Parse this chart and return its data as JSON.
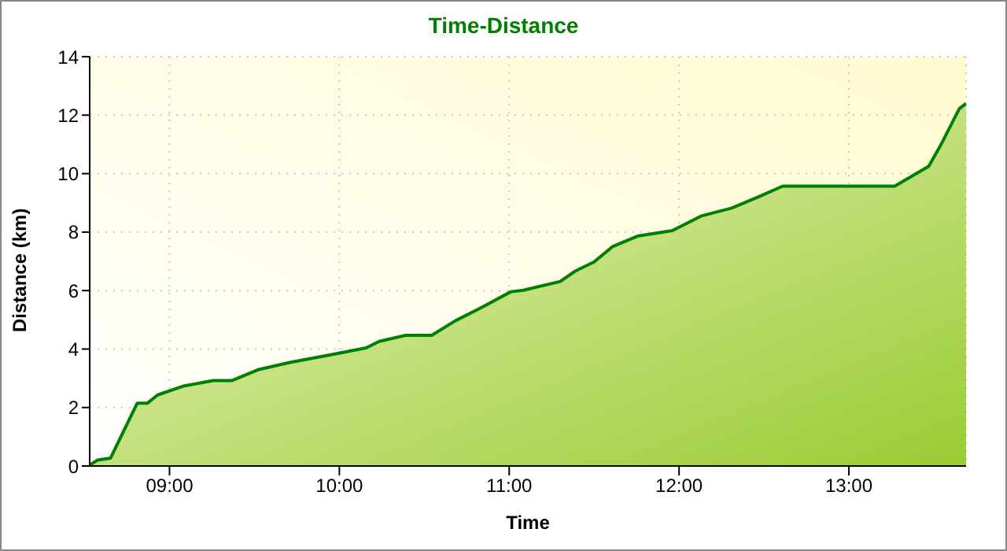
{
  "chart_data": {
    "type": "area",
    "title": "Time-Distance",
    "xlabel": "Time",
    "ylabel": "Distance (km)",
    "x": [
      8.535,
      8.575,
      8.653,
      8.81,
      8.87,
      8.93,
      9.087,
      9.257,
      9.366,
      9.52,
      9.707,
      9.955,
      10.157,
      10.234,
      10.39,
      10.544,
      10.684,
      10.823,
      11.01,
      11.083,
      11.3,
      11.39,
      11.5,
      11.61,
      11.76,
      11.96,
      12.13,
      12.31,
      12.47,
      12.61,
      13.27,
      13.47,
      13.54,
      13.65,
      13.69
    ],
    "series": [
      {
        "color": "#008000",
        "values": [
          0.05,
          0.2,
          0.27,
          2.15,
          2.15,
          2.43,
          2.74,
          2.92,
          2.92,
          3.29,
          3.54,
          3.81,
          4.04,
          4.26,
          4.47,
          4.47,
          4.97,
          5.38,
          5.96,
          6.01,
          6.31,
          6.67,
          6.98,
          7.51,
          7.87,
          8.05,
          8.55,
          8.82,
          9.21,
          9.57,
          9.57,
          10.25,
          10.97,
          12.22,
          12.4
        ]
      }
    ],
    "xlim": [
      8.53,
      13.69
    ],
    "xticks": [
      {
        "value": 9,
        "label": "09:00"
      },
      {
        "value": 10,
        "label": "10:00"
      },
      {
        "value": 11,
        "label": "11:00"
      },
      {
        "value": 12,
        "label": "12:00"
      },
      {
        "value": 13,
        "label": "13:00"
      }
    ],
    "ylim": [
      0,
      14
    ],
    "yticks": [
      0,
      2,
      4,
      6,
      8,
      10,
      12,
      14
    ],
    "grid": true,
    "legend": false,
    "line_style": "solid",
    "marker": "none"
  }
}
